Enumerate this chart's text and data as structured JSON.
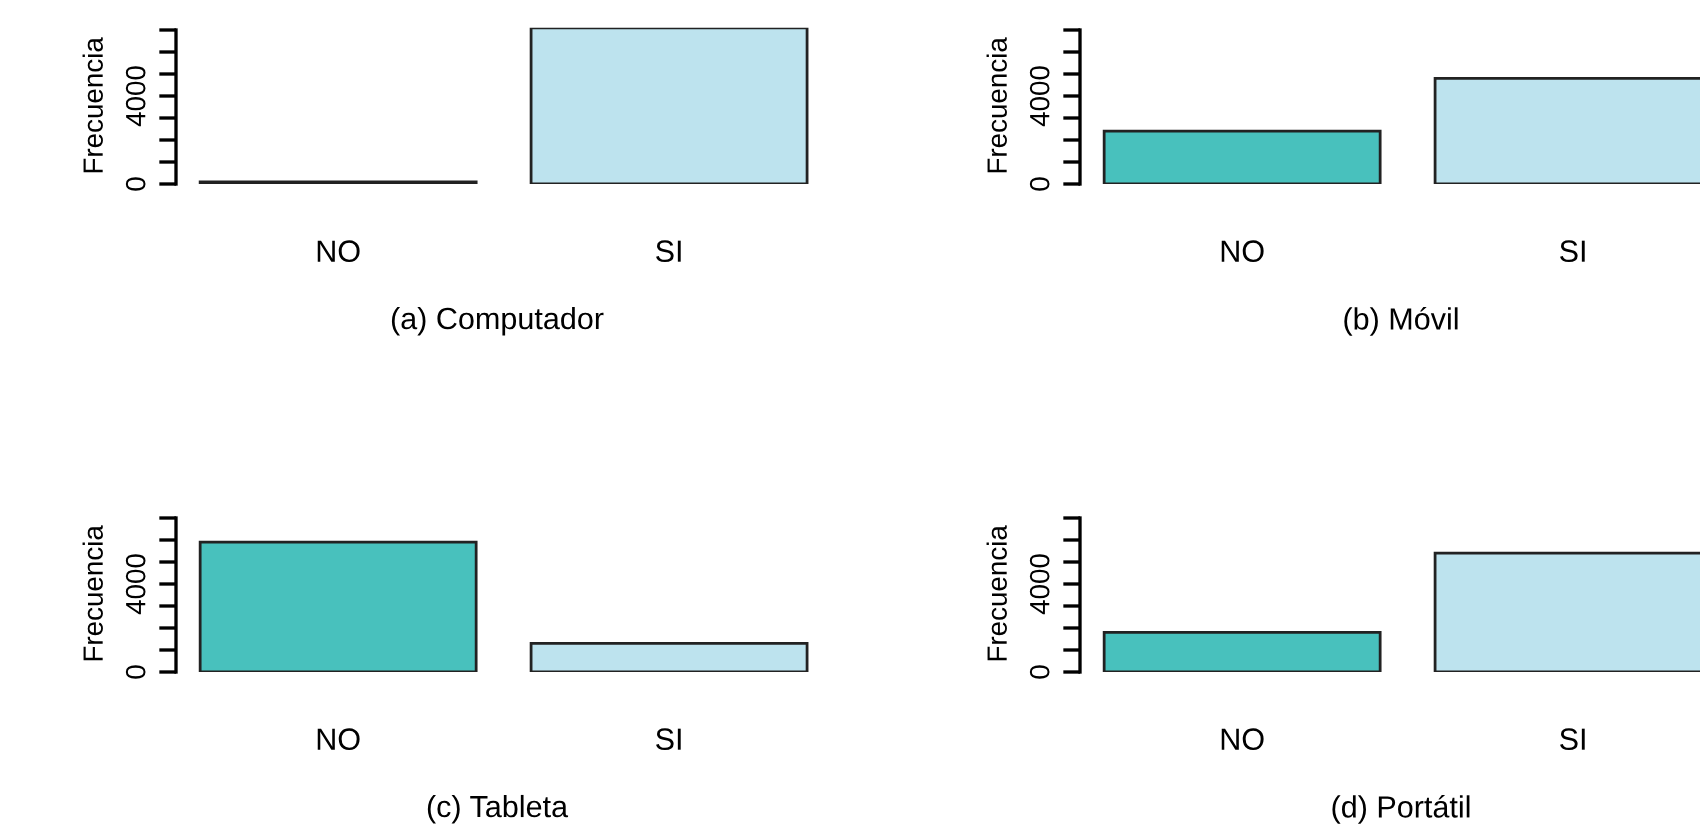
{
  "chart_data": [
    {
      "type": "bar",
      "categories": [
        "NO",
        "SI"
      ],
      "values": [
        100,
        7100
      ],
      "colors": [
        "#48c1bd",
        "#bde3ee"
      ],
      "xlabel": "(a) Computador",
      "ylabel": "Frecuencia",
      "ylim": [
        0,
        7100
      ],
      "yticks": [
        0,
        {
          "value": 1000,
          "label": null
        },
        {
          "value": 2000,
          "label": null
        },
        {
          "value": 3000,
          "label": null
        },
        4000,
        {
          "value": 5000,
          "label": null
        },
        {
          "value": 6000,
          "label": null
        },
        {
          "value": 7000,
          "label": null
        }
      ],
      "grid": false
    },
    {
      "type": "bar",
      "categories": [
        "NO",
        "SI"
      ],
      "values": [
        2400,
        4800
      ],
      "colors": [
        "#48c1bd",
        "#bde3ee"
      ],
      "xlabel": "(b) Móvil",
      "ylabel": "Frecuencia",
      "ylim": [
        0,
        7100
      ],
      "yticks": [
        0,
        {
          "value": 1000,
          "label": null
        },
        {
          "value": 2000,
          "label": null
        },
        {
          "value": 3000,
          "label": null
        },
        4000,
        {
          "value": 5000,
          "label": null
        },
        {
          "value": 6000,
          "label": null
        },
        {
          "value": 7000,
          "label": null
        }
      ],
      "grid": false
    },
    {
      "type": "bar",
      "categories": [
        "NO",
        "SI"
      ],
      "values": [
        5900,
        1300
      ],
      "colors": [
        "#48c1bd",
        "#bde3ee"
      ],
      "xlabel": "(c) Tableta",
      "ylabel": "Frecuencia",
      "ylim": [
        0,
        7100
      ],
      "yticks": [
        0,
        {
          "value": 1000,
          "label": null
        },
        {
          "value": 2000,
          "label": null
        },
        {
          "value": 3000,
          "label": null
        },
        4000,
        {
          "value": 5000,
          "label": null
        },
        {
          "value": 6000,
          "label": null
        },
        {
          "value": 7000,
          "label": null
        }
      ],
      "grid": false
    },
    {
      "type": "bar",
      "categories": [
        "NO",
        "SI"
      ],
      "values": [
        1800,
        5400
      ],
      "colors": [
        "#48c1bd",
        "#bde3ee"
      ],
      "xlabel": "(d) Portátil",
      "ylabel": "Frecuencia",
      "ylim": [
        0,
        7100
      ],
      "yticks": [
        0,
        {
          "value": 1000,
          "label": null
        },
        {
          "value": 2000,
          "label": null
        },
        {
          "value": 3000,
          "label": null
        },
        4000,
        {
          "value": 5000,
          "label": null
        },
        {
          "value": 6000,
          "label": null
        },
        {
          "value": 7000,
          "label": null
        }
      ],
      "grid": false
    }
  ]
}
